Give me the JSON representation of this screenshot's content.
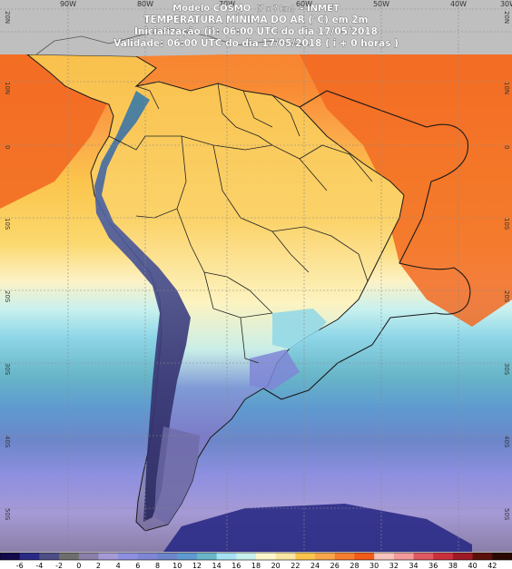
{
  "header": {
    "line1_main": "Modelo COSMO",
    "line1_res": "[7 x 7 km]",
    "line1_tail": "- INMET",
    "line2": "TEMPERATURA MÍNIMA DO AR (°C) em 2m",
    "line3": "Inicialização (i): 06:00 UTC do dia 17/05/2018",
    "line4": "Validade: 06:00 UTC do dia 17/05/2018 ( i + 0 horas )"
  },
  "grid_labels": {
    "lon_top": [
      "90W",
      "80W",
      "70W",
      "60W",
      "50W",
      "40W",
      "30W"
    ],
    "lat_left": [
      "20N",
      "10N",
      "0",
      "10S",
      "20S",
      "30S",
      "40S",
      "50S"
    ]
  },
  "colorbar": {
    "ticks": [
      "-6",
      "-4",
      "-2",
      "0",
      "2",
      "4",
      "6",
      "8",
      "10",
      "12",
      "14",
      "16",
      "18",
      "20",
      "22",
      "24",
      "26",
      "28",
      "30",
      "32",
      "34",
      "36",
      "38",
      "40",
      "42"
    ],
    "colors": [
      "#120a4a",
      "#2a2a86",
      "#4e4e86",
      "#6e6e6e",
      "#8a7fa8",
      "#a69ad6",
      "#8d8fe0",
      "#7f86d6",
      "#6d86c9",
      "#5e9ad0",
      "#68b6c8",
      "#a6e2f2",
      "#c9f1ee",
      "#fdf7ce",
      "#f9e6a4",
      "#fbc54c",
      "#f9a64a",
      "#f77e2e",
      "#f25a1a",
      "#f7c5bd",
      "#f39a9a",
      "#e05860",
      "#c8303c",
      "#9e1a26",
      "#5a1208",
      "#2a0804"
    ]
  }
}
